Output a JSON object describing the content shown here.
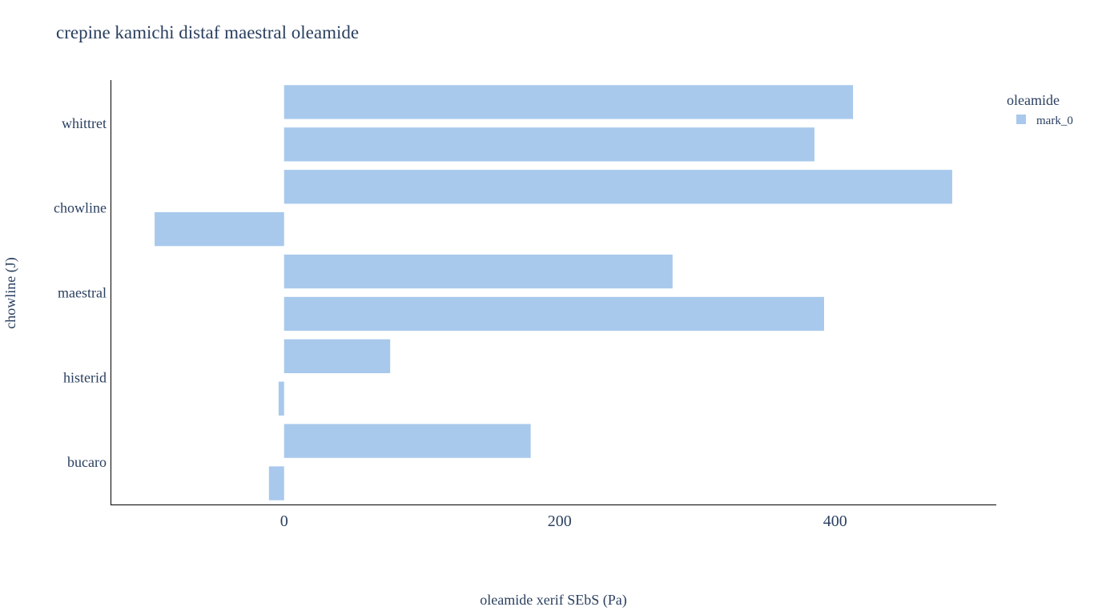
{
  "chart_data": {
    "type": "bar",
    "orientation": "horizontal",
    "title": "crepine kamichi distaf maestral oleamide",
    "xlabel": "oleamide xerif SEbS (Pa)",
    "ylabel": "chowline (J)",
    "xlim": [
      -126,
      517
    ],
    "x_ticks": [
      0,
      200,
      400
    ],
    "x_tick_labels": [
      "0",
      "200",
      "400"
    ],
    "y_tick_labels": [
      "whittret",
      "chowline",
      "maestral",
      "histerid",
      "bucaro"
    ],
    "grid": false,
    "bar_color": "#a8c9ec",
    "axis_color": "#000000",
    "text_color": "#2a3f5f",
    "legend": {
      "title": "oleamide",
      "position": "top-right",
      "entries": [
        "mark_0"
      ]
    },
    "series": [
      {
        "name": "mark_0",
        "values": [
          413,
          385,
          485,
          -94,
          282,
          392,
          77,
          -4,
          179,
          -11
        ]
      }
    ]
  }
}
